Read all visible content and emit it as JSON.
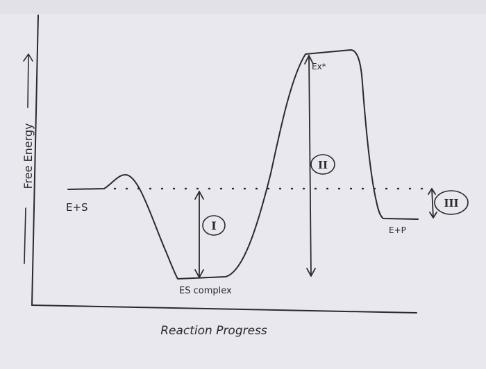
{
  "diagram": {
    "y_axis_label": "Free Energy",
    "x_axis_label": "Reaction Progress",
    "states": {
      "start": "E+S",
      "intermediate": "ES complex",
      "transition": "Ex*",
      "end": "E+P"
    },
    "markers": {
      "one": "I",
      "two": "II",
      "three": "III"
    }
  }
}
